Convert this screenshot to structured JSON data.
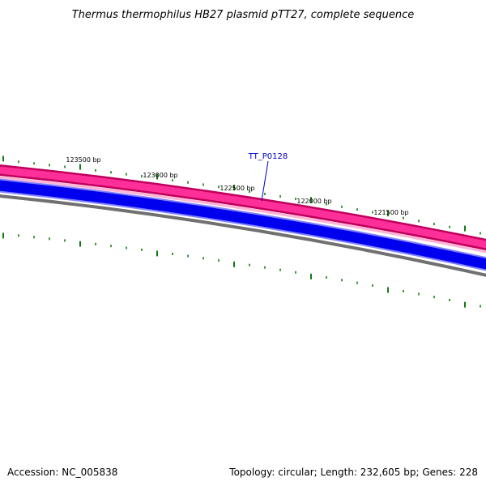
{
  "title": "Thermus thermophilus HB27 plasmid pTT27, complete sequence",
  "footer": {
    "accession": "Accession: NC_005838",
    "summary": "Topology: circular; Length: 232,605 bp; Genes: 228"
  },
  "gene_label": {
    "text": "TT_P0128",
    "color": "#0000cc"
  },
  "tick_labels": [
    "123500 bp",
    "123000 bp",
    "122500 bp",
    "122000 bp",
    "121500 bp"
  ],
  "colors": {
    "feature_outer": "#c0005c",
    "feature_pink": "#ff2f9a",
    "feature_light": "#ffb3d6",
    "gene_blue": "#0000ee",
    "gene_blue_light": "#8080ff",
    "backbone": "#707070",
    "tick": "#127b12"
  }
}
